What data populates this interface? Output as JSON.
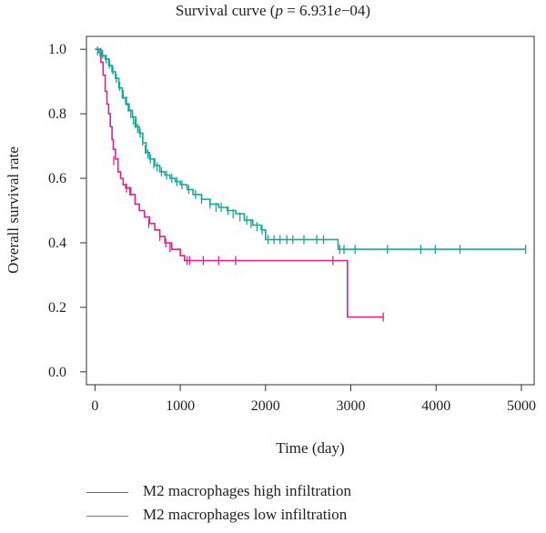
{
  "chart_data": {
    "type": "line",
    "title": {
      "prefix": "Survival curve (",
      "p_symbol": "p",
      "equals": " = ",
      "p_mantissa": "6.931",
      "p_e": "e",
      "p_exponent": "−04",
      "suffix": ")"
    },
    "xlabel": "Time (day)",
    "ylabel": "Overall survival rate",
    "xlim": [
      -100,
      5150
    ],
    "ylim": [
      -0.04,
      1.04
    ],
    "x_ticks": [
      0,
      1000,
      2000,
      3000,
      4000,
      5000
    ],
    "x_tick_labels": [
      "0",
      "1000",
      "2000",
      "3000",
      "4000",
      "5000"
    ],
    "y_ticks": [
      0.0,
      0.2,
      0.4,
      0.6,
      0.8,
      1.0
    ],
    "y_tick_labels": [
      "0.0",
      "0.2",
      "0.4",
      "0.6",
      "0.8",
      "1.0"
    ],
    "grid": false,
    "legend_position": "bottom",
    "series": [
      {
        "name": "M2 macrophages high infiltration",
        "color": "#e0218a",
        "steps": [
          [
            0,
            1.0
          ],
          [
            70,
            0.96
          ],
          [
            95,
            0.92
          ],
          [
            120,
            0.87
          ],
          [
            140,
            0.83
          ],
          [
            160,
            0.8
          ],
          [
            180,
            0.76
          ],
          [
            200,
            0.72
          ],
          [
            215,
            0.69
          ],
          [
            240,
            0.66
          ],
          [
            270,
            0.62
          ],
          [
            300,
            0.6
          ],
          [
            330,
            0.58
          ],
          [
            360,
            0.57
          ],
          [
            420,
            0.55
          ],
          [
            470,
            0.52
          ],
          [
            520,
            0.5
          ],
          [
            580,
            0.48
          ],
          [
            640,
            0.46
          ],
          [
            700,
            0.44
          ],
          [
            760,
            0.42
          ],
          [
            820,
            0.4
          ],
          [
            900,
            0.38
          ],
          [
            1000,
            0.36
          ],
          [
            1050,
            0.345
          ],
          [
            2960,
            0.17
          ],
          [
            3380,
            0.17
          ]
        ],
        "censors": [
          [
            220,
            0.655
          ],
          [
            370,
            0.57
          ],
          [
            410,
            0.56
          ],
          [
            630,
            0.46
          ],
          [
            760,
            0.42
          ],
          [
            830,
            0.4
          ],
          [
            880,
            0.385
          ],
          [
            1080,
            0.345
          ],
          [
            1110,
            0.345
          ],
          [
            1270,
            0.345
          ],
          [
            1450,
            0.345
          ],
          [
            1650,
            0.345
          ],
          [
            2790,
            0.345
          ],
          [
            3380,
            0.17
          ]
        ]
      },
      {
        "name": "M2 macrophages low infiltration",
        "color": "#1aa79a",
        "steps": [
          [
            0,
            1.0
          ],
          [
            40,
            0.99
          ],
          [
            80,
            0.98
          ],
          [
            120,
            0.97
          ],
          [
            160,
            0.95
          ],
          [
            200,
            0.93
          ],
          [
            240,
            0.91
          ],
          [
            280,
            0.88
          ],
          [
            320,
            0.85
          ],
          [
            360,
            0.83
          ],
          [
            400,
            0.81
          ],
          [
            440,
            0.79
          ],
          [
            480,
            0.76
          ],
          [
            520,
            0.74
          ],
          [
            560,
            0.71
          ],
          [
            600,
            0.68
          ],
          [
            640,
            0.66
          ],
          [
            700,
            0.64
          ],
          [
            760,
            0.62
          ],
          [
            820,
            0.61
          ],
          [
            880,
            0.6
          ],
          [
            940,
            0.59
          ],
          [
            1000,
            0.58
          ],
          [
            1080,
            0.565
          ],
          [
            1150,
            0.55
          ],
          [
            1250,
            0.535
          ],
          [
            1350,
            0.52
          ],
          [
            1450,
            0.51
          ],
          [
            1550,
            0.5
          ],
          [
            1650,
            0.49
          ],
          [
            1750,
            0.47
          ],
          [
            1850,
            0.455
          ],
          [
            1950,
            0.44
          ],
          [
            2000,
            0.41
          ],
          [
            2850,
            0.38
          ],
          [
            5050,
            0.38
          ]
        ],
        "censors": [
          [
            30,
            0.995
          ],
          [
            60,
            0.99
          ],
          [
            90,
            0.985
          ],
          [
            130,
            0.97
          ],
          [
            170,
            0.955
          ],
          [
            210,
            0.935
          ],
          [
            250,
            0.91
          ],
          [
            290,
            0.885
          ],
          [
            330,
            0.86
          ],
          [
            370,
            0.84
          ],
          [
            390,
            0.82
          ],
          [
            420,
            0.8
          ],
          [
            450,
            0.78
          ],
          [
            470,
            0.77
          ],
          [
            500,
            0.755
          ],
          [
            530,
            0.74
          ],
          [
            560,
            0.715
          ],
          [
            590,
            0.69
          ],
          [
            620,
            0.675
          ],
          [
            650,
            0.66
          ],
          [
            690,
            0.645
          ],
          [
            730,
            0.635
          ],
          [
            780,
            0.62
          ],
          [
            840,
            0.61
          ],
          [
            900,
            0.6
          ],
          [
            960,
            0.59
          ],
          [
            1020,
            0.58
          ],
          [
            1100,
            0.565
          ],
          [
            1180,
            0.55
          ],
          [
            1250,
            0.535
          ],
          [
            1350,
            0.52
          ],
          [
            1420,
            0.51
          ],
          [
            1480,
            0.51
          ],
          [
            1560,
            0.5
          ],
          [
            1620,
            0.49
          ],
          [
            1700,
            0.48
          ],
          [
            1780,
            0.47
          ],
          [
            1830,
            0.46
          ],
          [
            1900,
            0.45
          ],
          [
            1960,
            0.44
          ],
          [
            2030,
            0.41
          ],
          [
            2100,
            0.41
          ],
          [
            2170,
            0.41
          ],
          [
            2250,
            0.41
          ],
          [
            2320,
            0.41
          ],
          [
            2450,
            0.41
          ],
          [
            2600,
            0.41
          ],
          [
            2680,
            0.41
          ],
          [
            2870,
            0.38
          ],
          [
            2920,
            0.38
          ],
          [
            3050,
            0.38
          ],
          [
            3430,
            0.38
          ],
          [
            3820,
            0.38
          ],
          [
            3990,
            0.38
          ],
          [
            4280,
            0.38
          ],
          [
            5050,
            0.38
          ]
        ]
      }
    ]
  }
}
